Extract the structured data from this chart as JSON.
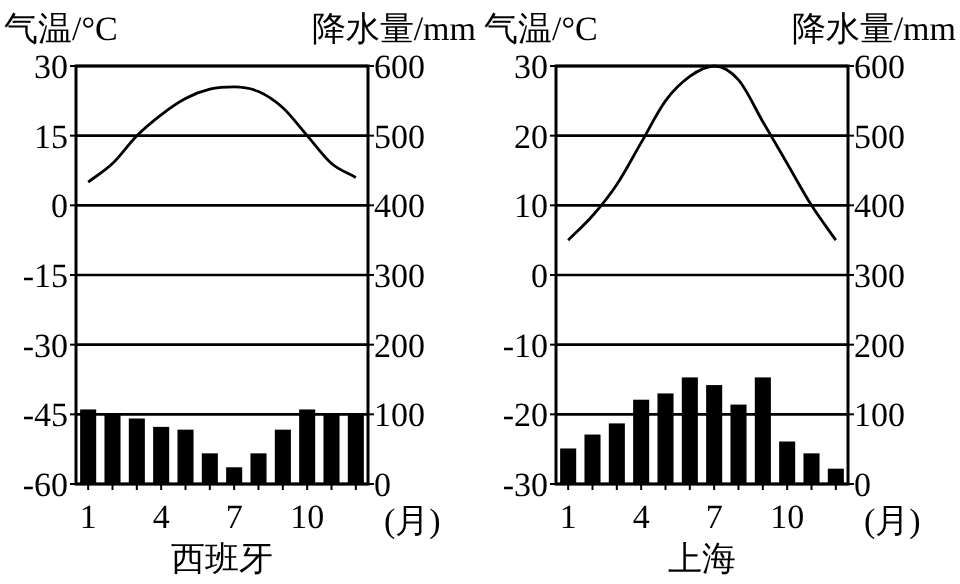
{
  "chart_data": [
    {
      "type": "bar",
      "title": "西班牙",
      "ylabel": "气温/°C",
      "y2label": "降水量/mm",
      "xlabel": "(月)",
      "grid": "y",
      "categories": [
        "1",
        null,
        null,
        "4",
        null,
        null,
        "7",
        null,
        null,
        "10",
        null,
        null
      ],
      "series": [
        {
          "axis": "y2",
          "color": "#000000",
          "values": [
            107,
            100,
            94,
            82,
            78,
            44,
            24,
            44,
            78,
            107,
            100,
            100
          ]
        },
        {
          "type": "line",
          "axis": "y",
          "color": "#000000",
          "values": [
            5,
            9,
            15,
            19.5,
            23,
            25,
            25.5,
            24.5,
            21,
            15,
            9,
            6
          ]
        }
      ],
      "ylim": [
        -60,
        30
      ],
      "yticks": [
        -60,
        -45,
        -30,
        -15,
        0,
        15,
        30
      ],
      "y2lim": [
        0,
        600
      ],
      "y2ticks": [
        0,
        100,
        200,
        300,
        400,
        500,
        600
      ]
    },
    {
      "type": "bar",
      "title": "上海",
      "ylabel": "气温/°C",
      "y2label": "降水量/mm",
      "xlabel": "(月)",
      "grid": "y",
      "categories": [
        "1",
        null,
        null,
        "4",
        null,
        null,
        "7",
        null,
        null,
        "10",
        null,
        null
      ],
      "series": [
        {
          "axis": "y2",
          "color": "#000000",
          "values": [
            51,
            71,
            87,
            121,
            130,
            153,
            142,
            114,
            153,
            61,
            44,
            22
          ]
        },
        {
          "type": "line",
          "axis": "y",
          "color": "#000000",
          "values": [
            5,
            8.5,
            13,
            19,
            25,
            28.5,
            30,
            28,
            22,
            16,
            10,
            5
          ]
        }
      ],
      "ylim": [
        -30,
        30
      ],
      "yticks": [
        -30,
        -20,
        -10,
        0,
        10,
        20,
        30
      ],
      "y2lim": [
        0,
        600
      ],
      "y2ticks": [
        0,
        100,
        200,
        300,
        400,
        500,
        600
      ]
    }
  ]
}
